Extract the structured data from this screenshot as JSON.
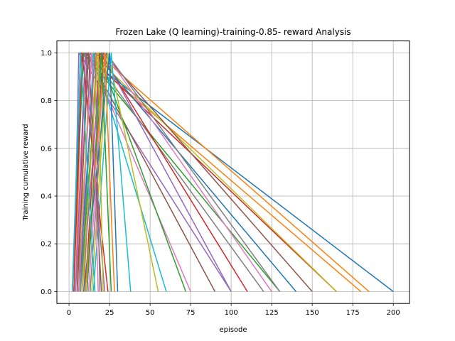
{
  "chart_data": {
    "type": "line",
    "title": "Frozen Lake (Q learning)-training-0.85- reward Analysis",
    "xlabel": "episode",
    "ylabel": "Training cumulative reward",
    "xlim": [
      -7.5,
      210
    ],
    "ylim": [
      -0.05,
      1.05
    ],
    "x_ticks": [
      0,
      25,
      50,
      75,
      100,
      125,
      150,
      175,
      200
    ],
    "y_ticks": [
      0.0,
      0.2,
      0.4,
      0.6,
      0.8,
      1.0
    ],
    "x_tick_labels": [
      "0",
      "25",
      "50",
      "75",
      "100",
      "125",
      "150",
      "175",
      "200"
    ],
    "y_tick_labels": [
      "0.0",
      "0.2",
      "0.4",
      "0.6",
      "0.8",
      "1.0"
    ],
    "grid": true,
    "legend": "none",
    "colors": [
      "#1f77b4",
      "#ff7f0e",
      "#2ca02c",
      "#d62728",
      "#9467bd",
      "#8c564b",
      "#e377c2",
      "#7f7f7f",
      "#bcbd22",
      "#17becf"
    ],
    "series": [
      {
        "x": [
          3,
          7,
          200
        ],
        "y": [
          0,
          1,
          0
        ]
      },
      {
        "x": [
          4,
          8,
          180
        ],
        "y": [
          0,
          1,
          0
        ]
      },
      {
        "x": [
          2,
          9,
          130
        ],
        "y": [
          0,
          1,
          0
        ]
      },
      {
        "x": [
          5,
          10,
          165
        ],
        "y": [
          0,
          1,
          0
        ]
      },
      {
        "x": [
          3,
          6,
          100
        ],
        "y": [
          0,
          1,
          0
        ]
      },
      {
        "x": [
          6,
          11,
          90
        ],
        "y": [
          0,
          1,
          0
        ]
      },
      {
        "x": [
          4,
          12,
          75
        ],
        "y": [
          0,
          1,
          0
        ]
      },
      {
        "x": [
          7,
          13,
          120
        ],
        "y": [
          0,
          1,
          0
        ]
      },
      {
        "x": [
          5,
          14,
          165
        ],
        "y": [
          0,
          1,
          0
        ]
      },
      {
        "x": [
          8,
          15,
          60
        ],
        "y": [
          0,
          1,
          0
        ]
      },
      {
        "x": [
          6,
          16,
          140
        ],
        "y": [
          0,
          1,
          0
        ]
      },
      {
        "x": [
          9,
          17,
          185
        ],
        "y": [
          0,
          1,
          0
        ]
      },
      {
        "x": [
          7,
          18,
          72
        ],
        "y": [
          0,
          1,
          0
        ]
      },
      {
        "x": [
          10,
          19,
          110
        ],
        "y": [
          0,
          1,
          0
        ]
      },
      {
        "x": [
          8,
          20,
          100
        ],
        "y": [
          0,
          1,
          0
        ]
      },
      {
        "x": [
          11,
          21,
          150
        ],
        "y": [
          0,
          1,
          0
        ]
      },
      {
        "x": [
          12,
          22,
          125
        ],
        "y": [
          0,
          1,
          0
        ]
      },
      {
        "x": [
          13,
          23,
          130
        ],
        "y": [
          0,
          1,
          0
        ]
      },
      {
        "x": [
          14,
          24,
          55
        ],
        "y": [
          0,
          1,
          0
        ]
      },
      {
        "x": [
          15,
          26,
          38
        ],
        "y": [
          0,
          1,
          0
        ]
      },
      {
        "x": [
          9,
          25,
          30
        ],
        "y": [
          0,
          1,
          0
        ]
      },
      {
        "x": [
          10,
          22,
          28
        ],
        "y": [
          0,
          1,
          0
        ]
      },
      {
        "x": [
          11,
          20,
          26
        ],
        "y": [
          0,
          1,
          0
        ]
      },
      {
        "x": [
          3,
          8,
          24
        ],
        "y": [
          0,
          1,
          0
        ]
      },
      {
        "x": [
          4,
          10,
          22
        ],
        "y": [
          0,
          1,
          0
        ]
      },
      {
        "x": [
          5,
          12,
          20
        ],
        "y": [
          0,
          1,
          0
        ]
      },
      {
        "x": [
          6,
          14,
          18
        ],
        "y": [
          0,
          1,
          0
        ]
      },
      {
        "x": [
          7,
          16,
          19
        ],
        "y": [
          0,
          1,
          0
        ]
      },
      {
        "x": [
          8,
          18,
          21
        ],
        "y": [
          0,
          1,
          0
        ]
      },
      {
        "x": [
          2,
          7,
          16
        ],
        "y": [
          0,
          1,
          0
        ]
      }
    ]
  }
}
